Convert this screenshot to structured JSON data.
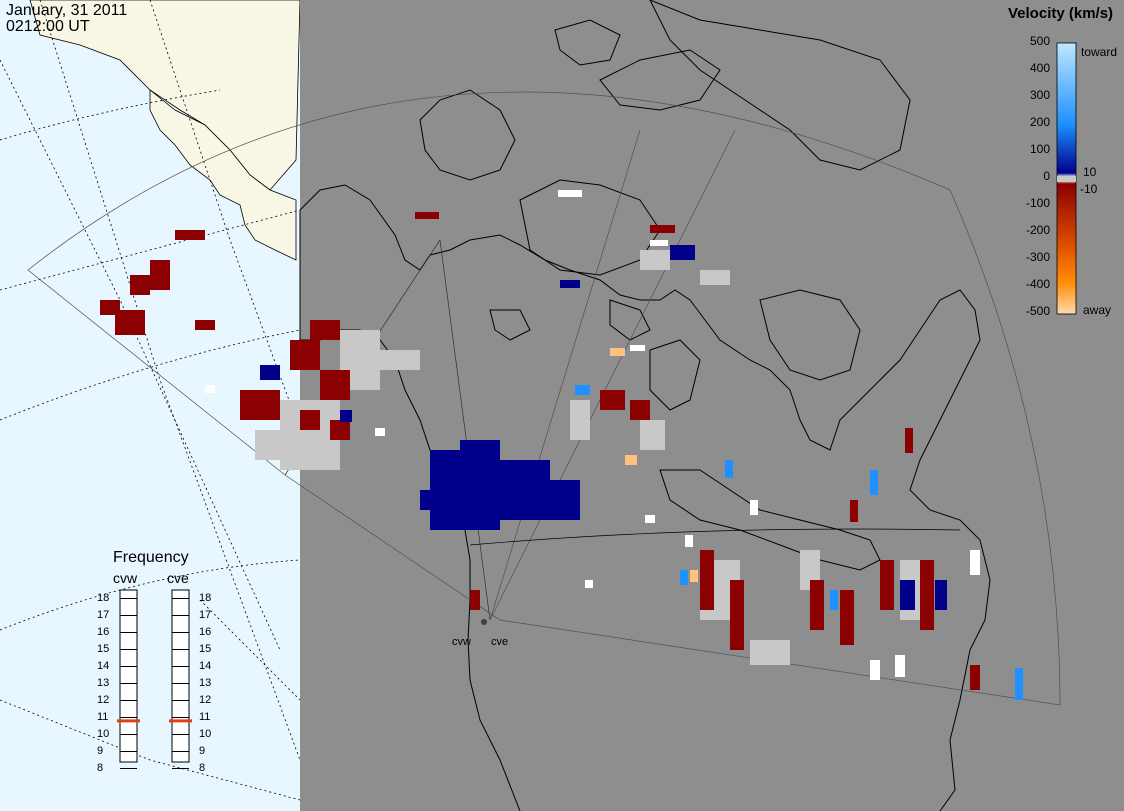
{
  "header": {
    "date": "January, 31 2011",
    "time": "0212:00 UT"
  },
  "legend": {
    "title": "Velocity (km/s)",
    "tick_labels": [
      "500",
      "400",
      "300",
      "200",
      "100",
      "0",
      "-100",
      "-200",
      "-300",
      "-400",
      "-500"
    ],
    "inner_labels": [
      "10",
      "-10"
    ],
    "toward_label": "toward",
    "away_label": "away",
    "colors": {
      "toward_light": "#bfe7ff",
      "toward_mid": "#1e90ff",
      "toward_dark": "#0000a0",
      "zero": "#ffffff",
      "away_dark": "#8b0000",
      "away_mid": "#e05000",
      "away_light": "#ffd0a0"
    }
  },
  "frequency": {
    "title": "Frequency",
    "radars": [
      "cvw",
      "cve"
    ],
    "scale": [
      "18",
      "17",
      "16",
      "15",
      "14",
      "13",
      "12",
      "11",
      "10",
      "9",
      "8"
    ],
    "cvw_mhz": 10.8,
    "cve_mhz": 10.8,
    "marker_color": "#e04010"
  },
  "sites": {
    "cvw": "cvw",
    "cve": "cve"
  },
  "colors": {
    "ocean": "#e8f6ff",
    "land": "#f8f6e4",
    "night": "#8e8e8e",
    "ground_scatter": "#c8c8c8"
  }
}
